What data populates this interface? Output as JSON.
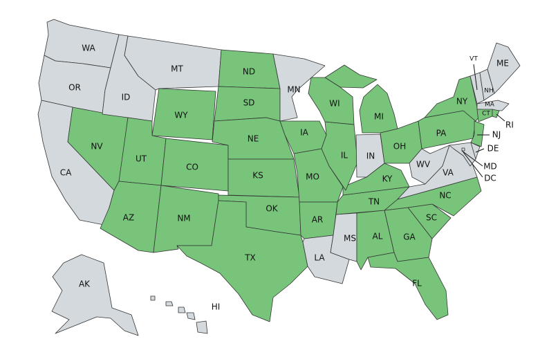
{
  "colors": {
    "highlighted": "#77c47a",
    "other": "#d3d9dd"
  },
  "states": [
    {
      "abbr": "WA",
      "highlighted": false
    },
    {
      "abbr": "OR",
      "highlighted": false
    },
    {
      "abbr": "CA",
      "highlighted": false
    },
    {
      "abbr": "NV",
      "highlighted": true
    },
    {
      "abbr": "ID",
      "highlighted": false
    },
    {
      "abbr": "MT",
      "highlighted": false
    },
    {
      "abbr": "WY",
      "highlighted": true
    },
    {
      "abbr": "UT",
      "highlighted": true
    },
    {
      "abbr": "CO",
      "highlighted": true
    },
    {
      "abbr": "AZ",
      "highlighted": true
    },
    {
      "abbr": "NM",
      "highlighted": true
    },
    {
      "abbr": "ND",
      "highlighted": true
    },
    {
      "abbr": "SD",
      "highlighted": true
    },
    {
      "abbr": "NE",
      "highlighted": true
    },
    {
      "abbr": "KS",
      "highlighted": true
    },
    {
      "abbr": "OK",
      "highlighted": true
    },
    {
      "abbr": "TX",
      "highlighted": true
    },
    {
      "abbr": "MN",
      "highlighted": false
    },
    {
      "abbr": "IA",
      "highlighted": true
    },
    {
      "abbr": "MO",
      "highlighted": true
    },
    {
      "abbr": "AR",
      "highlighted": true
    },
    {
      "abbr": "LA",
      "highlighted": false
    },
    {
      "abbr": "MS",
      "highlighted": false
    },
    {
      "abbr": "AL",
      "highlighted": true
    },
    {
      "abbr": "GA",
      "highlighted": true
    },
    {
      "abbr": "FL",
      "highlighted": true
    },
    {
      "abbr": "SC",
      "highlighted": true
    },
    {
      "abbr": "NC",
      "highlighted": true
    },
    {
      "abbr": "TN",
      "highlighted": true
    },
    {
      "abbr": "KY",
      "highlighted": true
    },
    {
      "abbr": "IL",
      "highlighted": true
    },
    {
      "abbr": "IN",
      "highlighted": false
    },
    {
      "abbr": "OH",
      "highlighted": true
    },
    {
      "abbr": "MI",
      "highlighted": true
    },
    {
      "abbr": "WI",
      "highlighted": true
    },
    {
      "abbr": "WV",
      "highlighted": false
    },
    {
      "abbr": "VA",
      "highlighted": false
    },
    {
      "abbr": "PA",
      "highlighted": true
    },
    {
      "abbr": "NY",
      "highlighted": true
    },
    {
      "abbr": "NJ",
      "highlighted": true
    },
    {
      "abbr": "DE",
      "highlighted": false
    },
    {
      "abbr": "MD",
      "highlighted": false
    },
    {
      "abbr": "DC",
      "highlighted": false
    },
    {
      "abbr": "VT",
      "highlighted": false
    },
    {
      "abbr": "NH",
      "highlighted": false
    },
    {
      "abbr": "ME",
      "highlighted": false
    },
    {
      "abbr": "MA",
      "highlighted": false
    },
    {
      "abbr": "CT",
      "highlighted": true
    },
    {
      "abbr": "RI",
      "highlighted": true
    },
    {
      "abbr": "AK",
      "highlighted": false
    },
    {
      "abbr": "HI",
      "highlighted": false
    }
  ]
}
